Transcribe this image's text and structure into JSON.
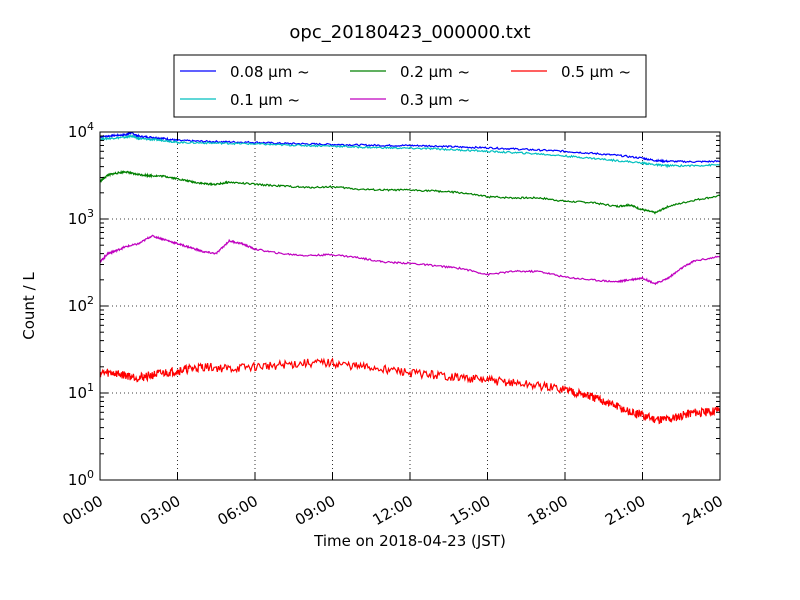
{
  "chart_data": {
    "type": "line",
    "title": "opc_20180423_000000.txt",
    "xlabel": "Time on 2018-04-23 (JST)",
    "ylabel": "Count / L",
    "x_unit": "hours",
    "xlim": [
      0,
      24
    ],
    "x_ticks": [
      0,
      3,
      6,
      9,
      12,
      15,
      18,
      21,
      24
    ],
    "x_tick_labels": [
      "00:00",
      "03:00",
      "06:00",
      "09:00",
      "12:00",
      "15:00",
      "18:00",
      "21:00",
      "24:00"
    ],
    "ylim": [
      1,
      10000
    ],
    "yscale": "log",
    "y_ticks": [
      1,
      10,
      100,
      1000,
      10000
    ],
    "y_tick_labels": [
      {
        "base": "10",
        "exp": "0"
      },
      {
        "base": "10",
        "exp": "1"
      },
      {
        "base": "10",
        "exp": "2"
      },
      {
        "base": "10",
        "exp": "3"
      },
      {
        "base": "10",
        "exp": "4"
      }
    ],
    "grid": true,
    "legend_position": "top",
    "series": [
      {
        "name": "0.08 μm ~",
        "color": "#0000ff",
        "x": [
          0,
          0.5,
          1,
          1.2,
          1.5,
          2,
          2.5,
          3,
          4,
          5,
          6,
          7,
          8,
          9,
          10,
          11,
          12,
          13,
          14,
          15,
          16,
          17,
          18,
          19,
          20,
          21,
          21.5,
          22,
          23,
          24
        ],
        "y": [
          8800,
          9100,
          9300,
          9800,
          8900,
          8700,
          8400,
          8000,
          7800,
          7700,
          7600,
          7400,
          7300,
          7200,
          7100,
          7000,
          7000,
          6900,
          6700,
          6600,
          6400,
          6200,
          6000,
          5700,
          5400,
          5000,
          4700,
          4600,
          4550,
          4600
        ]
      },
      {
        "name": "0.1 μm ~",
        "color": "#00bfbf",
        "x": [
          0,
          0.5,
          1,
          1.2,
          1.5,
          2,
          2.5,
          3,
          4,
          5,
          6,
          7,
          8,
          9,
          10,
          11,
          12,
          13,
          14,
          15,
          16,
          17,
          18,
          19,
          20,
          21,
          21.5,
          22,
          23,
          24
        ],
        "y": [
          8300,
          8500,
          8700,
          9000,
          8400,
          8200,
          8000,
          7600,
          7500,
          7400,
          7300,
          7100,
          7000,
          6900,
          6700,
          6600,
          6500,
          6400,
          6200,
          6000,
          5800,
          5600,
          5300,
          5000,
          4700,
          4400,
          4200,
          4100,
          4100,
          4200
        ]
      },
      {
        "name": "0.2 μm ~",
        "color": "#008000",
        "x": [
          0,
          0.3,
          0.6,
          1,
          1.3,
          1.7,
          2,
          2.5,
          3,
          3.5,
          4,
          4.5,
          5,
          6,
          7,
          8,
          9,
          10,
          11,
          12,
          13,
          14,
          15,
          16,
          17,
          18,
          19,
          20,
          20.5,
          21,
          21.5,
          22,
          23,
          24
        ],
        "y": [
          2700,
          3200,
          3350,
          3500,
          3300,
          3200,
          3150,
          3100,
          2900,
          2700,
          2550,
          2500,
          2650,
          2500,
          2400,
          2300,
          2350,
          2200,
          2150,
          2150,
          2100,
          2000,
          1800,
          1750,
          1750,
          1600,
          1550,
          1400,
          1450,
          1280,
          1180,
          1400,
          1650,
          1850
        ]
      },
      {
        "name": "0.3 μm ~",
        "color": "#bf00bf",
        "x": [
          0,
          0.3,
          0.6,
          1,
          1.5,
          2,
          2.5,
          3,
          3.5,
          4,
          4.5,
          5,
          5.5,
          6,
          7,
          8,
          9,
          10,
          11,
          12,
          13,
          14,
          15,
          16,
          17,
          18,
          19,
          20,
          20.5,
          21,
          21.5,
          22,
          22.5,
          23,
          24
        ],
        "y": [
          320,
          400,
          430,
          480,
          520,
          640,
          580,
          520,
          470,
          420,
          400,
          560,
          520,
          450,
          400,
          380,
          390,
          360,
          320,
          310,
          290,
          270,
          230,
          250,
          250,
          215,
          200,
          190,
          200,
          210,
          180,
          210,
          270,
          330,
          370
        ]
      },
      {
        "name": "0.5 μm ~",
        "color": "#ff0000",
        "x": [
          0,
          0.5,
          1,
          1.5,
          2,
          2.5,
          3,
          3.5,
          4,
          5,
          6,
          7,
          8,
          9,
          10,
          11,
          12,
          13,
          14,
          15,
          16,
          17,
          18,
          18.5,
          19,
          19.5,
          20,
          20.5,
          21,
          21.5,
          22,
          22.5,
          23,
          23.5,
          24
        ],
        "y": [
          17,
          17,
          16,
          15,
          16,
          17,
          18,
          19,
          20,
          19,
          20,
          21,
          22,
          22,
          20,
          19,
          17,
          16,
          15,
          14,
          13,
          12,
          11,
          10,
          9,
          8,
          7,
          6,
          5.5,
          5,
          5,
          5.5,
          6,
          6,
          6.5
        ]
      }
    ]
  }
}
